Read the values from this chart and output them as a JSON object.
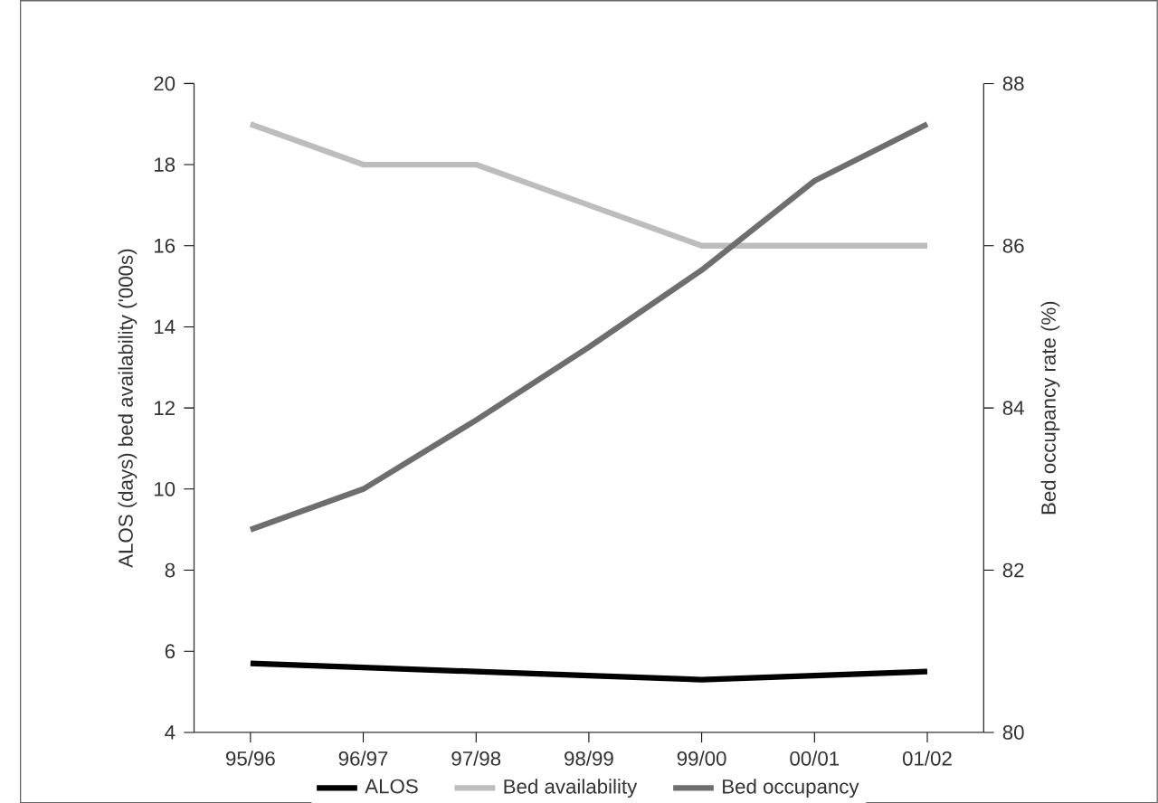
{
  "chart_data": {
    "type": "line",
    "categories": [
      "95/96",
      "96/97",
      "97/98",
      "98/99",
      "99/00",
      "00/01",
      "01/02"
    ],
    "series": [
      {
        "name": "ALOS",
        "color": "#000000",
        "values": [
          5.7,
          5.6,
          5.5,
          5.4,
          5.3,
          5.4,
          5.5
        ]
      },
      {
        "name": "Bed availability",
        "color": "#bdbdbd",
        "values": [
          19,
          18,
          18,
          17,
          16,
          16,
          16
        ]
      },
      {
        "name": "Bed occupancy",
        "color": "#6e6e6e",
        "axis": "y2",
        "values": [
          82.5,
          83,
          83.85,
          84.75,
          85.7,
          86.8,
          87.5
        ]
      }
    ],
    "ylabel": "ALOS (days) bed availability ('000s)",
    "y2label": "Bed occupancy rate (%)",
    "ylim": [
      4,
      20
    ],
    "yticks": [
      4,
      6,
      8,
      10,
      12,
      14,
      16,
      18,
      20
    ],
    "y2lim": [
      80,
      88
    ],
    "y2ticks": [
      80,
      82,
      84,
      86,
      88
    ],
    "grid": false,
    "legend": "bottom",
    "marker": "none",
    "line_style": "solid"
  }
}
